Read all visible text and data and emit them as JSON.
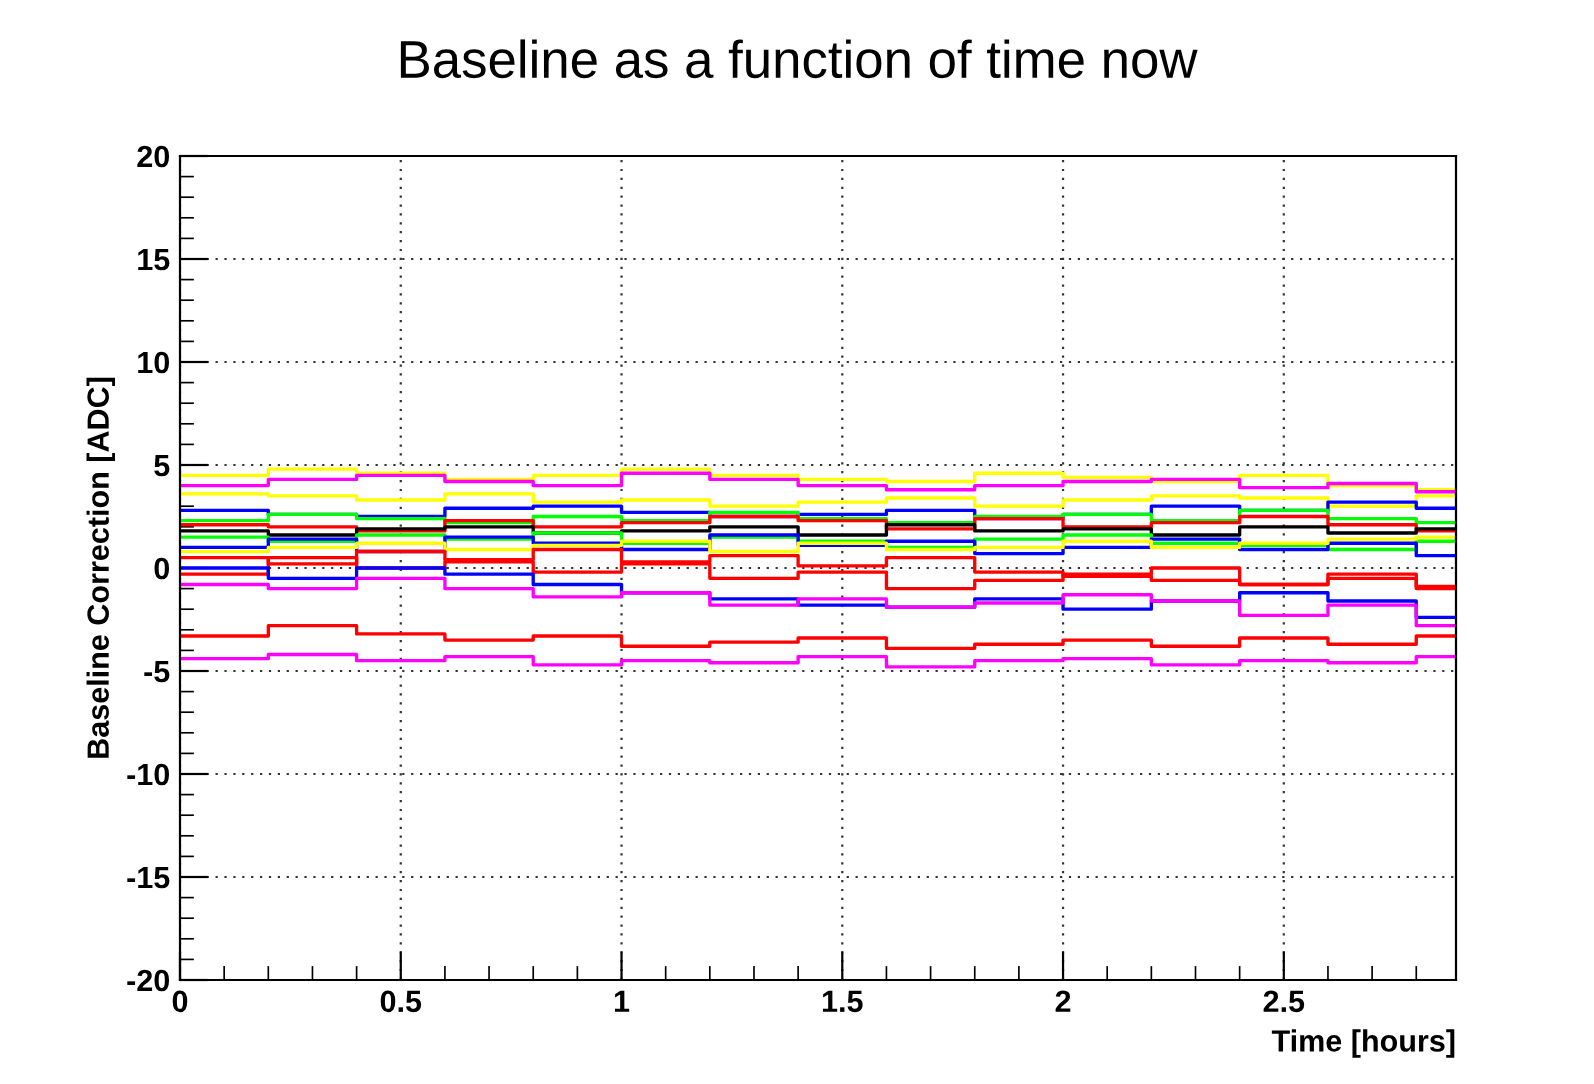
{
  "chart_data": {
    "type": "step",
    "title": "Baseline as a function of time now",
    "xlabel": "Time [hours]",
    "ylabel": "Baseline Correction [ADC]",
    "x": [
      0,
      0.2,
      0.4,
      0.6,
      0.8,
      1.0,
      1.2,
      1.4,
      1.6,
      1.8,
      2.0,
      2.2,
      2.4,
      2.6,
      2.8,
      2.89
    ],
    "xlim": [
      0,
      2.89
    ],
    "xticks": [
      0,
      0.5,
      1,
      1.5,
      2,
      2.5
    ],
    "ylim": [
      -20,
      20
    ],
    "yticks": [
      -20,
      -15,
      -10,
      -5,
      0,
      5,
      10,
      15,
      20
    ],
    "grid": true,
    "line_style": "solid",
    "series": [
      {
        "color": "#ffff00",
        "values": [
          4.5,
          4.8,
          4.6,
          4.3,
          4.5,
          4.8,
          4.5,
          4.3,
          4.2,
          4.6,
          4.4,
          4.2,
          4.5,
          4.0,
          3.8,
          3.8
        ]
      },
      {
        "color": "#ff00ff",
        "values": [
          4.0,
          4.3,
          4.5,
          4.2,
          4.0,
          4.6,
          4.3,
          4.0,
          3.8,
          4.0,
          4.2,
          4.3,
          3.9,
          4.1,
          3.7,
          3.7
        ]
      },
      {
        "color": "#ffff00",
        "values": [
          3.6,
          3.5,
          3.3,
          3.6,
          3.2,
          3.3,
          3.0,
          3.2,
          3.4,
          3.0,
          3.3,
          3.5,
          3.4,
          3.0,
          3.5,
          3.5
        ]
      },
      {
        "color": "#0000ff",
        "values": [
          2.8,
          2.6,
          2.5,
          2.9,
          3.0,
          2.7,
          2.5,
          2.6,
          2.8,
          2.4,
          2.6,
          3.0,
          2.8,
          3.2,
          2.9,
          2.9
        ]
      },
      {
        "color": "#00ff00",
        "values": [
          2.3,
          2.6,
          2.4,
          2.2,
          2.5,
          2.3,
          2.7,
          2.4,
          2.2,
          2.5,
          2.6,
          2.3,
          2.8,
          2.4,
          2.2,
          2.2
        ]
      },
      {
        "color": "#ff0000",
        "values": [
          2.1,
          2.0,
          1.8,
          2.3,
          2.0,
          2.2,
          2.5,
          2.3,
          1.9,
          2.4,
          2.0,
          2.2,
          2.5,
          2.1,
          1.8,
          1.8
        ]
      },
      {
        "color": "#000000",
        "values": [
          1.8,
          1.6,
          1.9,
          2.0,
          1.7,
          1.8,
          2.0,
          1.6,
          2.1,
          1.8,
          1.9,
          1.6,
          2.0,
          1.7,
          1.9,
          1.9
        ]
      },
      {
        "color": "#00ff00",
        "values": [
          1.5,
          1.3,
          1.6,
          1.4,
          1.7,
          1.2,
          1.5,
          1.3,
          1.0,
          1.4,
          1.6,
          1.2,
          1.1,
          0.9,
          1.3,
          1.3
        ]
      },
      {
        "color": "#0000ff",
        "values": [
          1.0,
          1.4,
          0.8,
          1.5,
          1.2,
          0.9,
          1.6,
          1.1,
          1.3,
          0.7,
          1.0,
          1.4,
          0.9,
          1.2,
          0.6,
          0.6
        ]
      },
      {
        "color": "#ffff00",
        "values": [
          0.8,
          1.0,
          1.2,
          0.9,
          1.1,
          1.3,
          0.8,
          1.2,
          0.9,
          1.0,
          1.3,
          1.0,
          1.2,
          1.4,
          1.5,
          1.5
        ]
      },
      {
        "color": "#ff0000",
        "values": [
          0.5,
          0.2,
          0.8,
          0.4,
          0.9,
          0.3,
          0.6,
          0.1,
          0.5,
          -0.2,
          -0.4,
          -0.6,
          -0.8,
          -0.3,
          -1.0,
          -1.0
        ]
      },
      {
        "color": "#ff0000",
        "values": [
          -0.3,
          0.5,
          0.0,
          0.3,
          -0.2,
          0.2,
          -0.5,
          -0.2,
          -1.0,
          -0.6,
          -0.3,
          0.0,
          -0.8,
          -0.5,
          -0.9,
          -0.9
        ]
      },
      {
        "color": "#0000ff",
        "values": [
          0.0,
          -0.5,
          0.0,
          -0.3,
          -0.8,
          -1.2,
          -1.5,
          -1.8,
          -1.9,
          -1.5,
          -2.0,
          -1.6,
          -1.2,
          -1.6,
          -2.4,
          -2.4
        ]
      },
      {
        "color": "#ff00ff",
        "values": [
          -0.8,
          -1.0,
          -0.5,
          -1.0,
          -1.4,
          -1.2,
          -1.8,
          -1.5,
          -1.9,
          -1.7,
          -1.3,
          -1.6,
          -2.3,
          -1.8,
          -2.8,
          -2.8
        ]
      },
      {
        "color": "#ff0000",
        "values": [
          -3.3,
          -2.8,
          -3.2,
          -3.5,
          -3.3,
          -3.8,
          -3.6,
          -3.4,
          -3.9,
          -3.7,
          -3.5,
          -3.8,
          -3.4,
          -3.7,
          -3.3,
          -3.3
        ]
      },
      {
        "color": "#ff00ff",
        "values": [
          -4.4,
          -4.2,
          -4.5,
          -4.3,
          -4.7,
          -4.5,
          -4.6,
          -4.3,
          -4.8,
          -4.5,
          -4.4,
          -4.7,
          -4.5,
          -4.6,
          -4.3,
          -4.3
        ]
      }
    ]
  }
}
